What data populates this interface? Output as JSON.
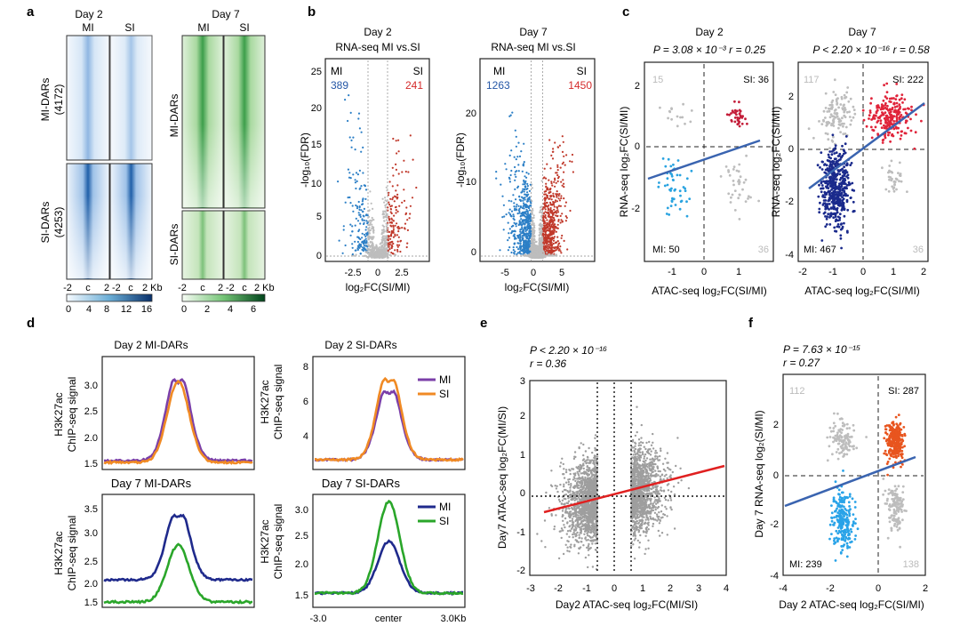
{
  "panels": {
    "a": {
      "label": "a",
      "day2_title": "Day 2",
      "day7_title": "Day 7",
      "col_mi": "MI",
      "col_si": "SI",
      "mi_dars_count": "MI-DARs",
      "mi_dars_n": "(4172)",
      "si_dars_count": "SI-DARs",
      "si_dars_n": "(4253)",
      "mi_dars7": "MI-DARs",
      "si_dars7": "SI-DARs",
      "xticks": [
        "-2",
        "c",
        "2",
        "-2",
        "c",
        "2 Kb"
      ],
      "cbar_blue": [
        "0",
        "4",
        "8",
        "12",
        "16"
      ],
      "cbar_green": [
        "0",
        "2",
        "4",
        "6"
      ],
      "xticks7": [
        "-2",
        "c",
        "2",
        "-2",
        "c",
        "2 Kb"
      ],
      "colors": {
        "blue_dark": "#1f5fa8",
        "blue_light": "#eaf2fb",
        "green_dark": "#1e7a2e",
        "green_light": "#e8f5e4"
      }
    },
    "b": {
      "label": "b",
      "day2": "Day 2",
      "day7": "Day 7",
      "title2": "RNA-seq MI vs.SI",
      "title7": "RNA-seq  MI vs.SI",
      "ylabel": "-log₁₀(FDR)",
      "xlabel": "log₂FC(SI/MI)",
      "mi": "MI",
      "si": "SI",
      "d2_mi_n": "389",
      "d2_si_n": "241",
      "d7_mi_n": "1263",
      "d7_si_n": "1450",
      "d2_xticks": [
        "-2.5",
        "0",
        "2.5"
      ],
      "d2_yticks": [
        "0",
        "5",
        "10",
        "15",
        "20",
        "25"
      ],
      "d7_xticks": [
        "-5",
        "0",
        "5"
      ],
      "d7_yticks": [
        "0",
        "10",
        "20"
      ],
      "colors": {
        "mi": "#2c7fc6",
        "si": "#c0392b",
        "ns": "#bdbdbd"
      }
    },
    "c": {
      "label": "c",
      "day2": "Day 2",
      "day7": "Day 7",
      "stat2": "P = 3.08 × 10⁻³  r = 0.25",
      "stat7": "P < 2.20 × 10⁻¹⁶ r = 0.58",
      "ylabel": "RNA-seq log₂FC(SI/MI)",
      "xlabel": "ATAC-seq log₂FC(SI/MI)",
      "d2_q": {
        "tl": "15",
        "tr": "SI: 36",
        "bl": "MI: 50",
        "br": "36"
      },
      "d7_q": {
        "tl": "117",
        "tr": "SI: 222",
        "bl": "MI: 467",
        "br": "36"
      },
      "d2_xticks": [
        "-1",
        "0",
        "1"
      ],
      "d2_yticks": [
        "-2",
        "0",
        "2"
      ],
      "d7_xticks": [
        "-2",
        "-1",
        "0",
        "1",
        "2"
      ],
      "d7_yticks": [
        "-4",
        "-2",
        "0",
        "2"
      ],
      "colors": {
        "si2": "#c41e3a",
        "mi2": "#29a3e0",
        "si7": "#e0243a",
        "mi7": "#1a2a8c",
        "ns": "#bdbdbd",
        "fit": "#3a64b0"
      }
    },
    "d": {
      "label": "d",
      "t1": "Day 2 MI-DARs",
      "t2": "Day 2 SI-DARs",
      "t3": "Day 7 MI-DARs",
      "t4": "Day 7 SI-DARs",
      "ylabel_a": "H3K27ac",
      "ylabel_b": "ChIP-seq signal",
      "legend_mi": "MI",
      "legend_si": "SI",
      "y1": [
        "1.5",
        "2.0",
        "2.5",
        "3.0"
      ],
      "y2": [
        "4",
        "6",
        "8"
      ],
      "y3": [
        "1.5",
        "2.0",
        "2.5",
        "3.0",
        "3.5"
      ],
      "y4": [
        "1.5",
        "2.0",
        "2.5",
        "3.0"
      ],
      "xticks": [
        "-3.0",
        "center",
        "3.0Kb"
      ],
      "colors": {
        "mi2": "#7b3fa8",
        "si2": "#f08a24",
        "mi7": "#1f2a8c",
        "si7": "#2aa62a"
      }
    },
    "e": {
      "label": "e",
      "stat1": "P < 2.20 × 10⁻¹⁶",
      "stat2": "r = 0.36",
      "ylabel": "Day7 ATAC-seq log₂FC(MI/SI)",
      "xlabel": "Day2 ATAC-seq log₂FC(MI/SI)",
      "xticks": [
        "-3",
        "-2",
        "-1",
        "0",
        "1",
        "2",
        "3",
        "4"
      ],
      "yticks": [
        "-2",
        "-1",
        "0",
        "1",
        "2",
        "3"
      ],
      "colors": {
        "pts": "#9e9e9e",
        "fit": "#e02020"
      }
    },
    "f": {
      "label": "f",
      "stat1": "P  = 7.63 × 10⁻¹⁵",
      "stat2": "r = 0.27",
      "ylabel": "Day 7 RNA-seq log₂(SI/MI)",
      "xlabel": "Day 2 ATAC-seq log₂FC(SI/MI)",
      "q": {
        "tl": "112",
        "tr": "SI: 287",
        "bl": "MI: 239",
        "br": "138"
      },
      "xticks": [
        "-4",
        "-2",
        "0",
        "2"
      ],
      "yticks": [
        "-4",
        "-2",
        "0",
        "2"
      ],
      "colors": {
        "si": "#e8551f",
        "mi": "#29a3e8",
        "ns": "#bdbdbd",
        "fit": "#3a64b0"
      }
    }
  },
  "chart_data": [
    {
      "type": "heatmap",
      "title": "Day 2",
      "columns": [
        "MI",
        "SI"
      ],
      "rows": [
        "MI-DARs (4172)",
        "SI-DARs (4253)"
      ],
      "x": [
        "-2",
        "c",
        "2 Kb"
      ],
      "colorbar": [
        0,
        16
      ]
    },
    {
      "type": "heatmap",
      "title": "Day 7",
      "columns": [
        "MI",
        "SI"
      ],
      "rows": [
        "MI-DARs",
        "SI-DARs"
      ],
      "x": [
        "-2",
        "c",
        "2 Kb"
      ],
      "colorbar": [
        0,
        6
      ]
    },
    {
      "type": "scatter",
      "title": "Day 2 RNA-seq MI vs.SI",
      "xlabel": "log₂FC(SI/MI)",
      "ylabel": "-log₁₀(FDR)",
      "counts": {
        "MI": 389,
        "SI": 241
      },
      "xlim": [
        -4.5,
        4.5
      ],
      "ylim": [
        0,
        26
      ]
    },
    {
      "type": "scatter",
      "title": "Day 7 RNA-seq MI vs.SI",
      "xlabel": "log₂FC(SI/MI)",
      "ylabel": "-log₁₀(FDR)",
      "counts": {
        "MI": 1263,
        "SI": 1450
      },
      "xlim": [
        -8,
        9
      ],
      "ylim": [
        0,
        27
      ]
    },
    {
      "type": "scatter",
      "title": "Day 2",
      "xlabel": "ATAC-seq log₂FC(SI/MI)",
      "ylabel": "RNA-seq log₂FC(SI/MI)",
      "counts": {
        "tl": 15,
        "SI": 36,
        "MI": 50,
        "br": 36
      },
      "P": "3.08 × 10⁻³",
      "r": 0.25,
      "xlim": [
        -1.7,
        1.7
      ],
      "ylim": [
        -3.5,
        3
      ]
    },
    {
      "type": "scatter",
      "title": "Day 7",
      "xlabel": "ATAC-seq log₂FC(SI/MI)",
      "ylabel": "RNA-seq log₂FC(SI/MI)",
      "counts": {
        "tl": 117,
        "SI": 222,
        "MI": 467,
        "br": 36
      },
      "P": "< 2.20 × 10⁻¹⁶",
      "r": 0.58,
      "xlim": [
        -2.1,
        2.1
      ],
      "ylim": [
        -4.5,
        3.2
      ]
    },
    {
      "type": "line",
      "title": "Day 2 MI-DARs",
      "ylabel": "H3K27ac ChIP-seq signal",
      "series": [
        {
          "name": "MI",
          "peak": 3.35,
          "base": 1.55
        },
        {
          "name": "SI",
          "peak": 3.05,
          "base": 1.52
        }
      ]
    },
    {
      "type": "line",
      "title": "Day 2 SI-DARs",
      "ylabel": "H3K27ac ChIP-seq signal",
      "series": [
        {
          "name": "MI",
          "peak": 7.3,
          "base": 2.4
        },
        {
          "name": "SI",
          "peak": 8.4,
          "base": 2.6
        }
      ]
    },
    {
      "type": "line",
      "title": "Day 7 MI-DARs",
      "ylabel": "H3K27ac ChIP-seq signal",
      "series": [
        {
          "name": "MI",
          "peak": 3.7,
          "base": 1.95
        },
        {
          "name": "SI",
          "peak": 2.7,
          "base": 1.6
        }
      ]
    },
    {
      "type": "line",
      "title": "Day 7 SI-DARs",
      "ylabel": "H3K27ac ChIP-seq signal",
      "x": [
        "-3.0",
        "center",
        "3.0Kb"
      ],
      "series": [
        {
          "name": "MI",
          "peak": 2.45,
          "base": 1.5
        },
        {
          "name": "SI",
          "peak": 3.2,
          "base": 1.5
        }
      ]
    },
    {
      "type": "scatter",
      "xlabel": "Day2 ATAC-seq log₂FC(MI/SI)",
      "ylabel": "Day7 ATAC-seq log₂FC(MI/SI)",
      "P": "< 2.20 × 10⁻¹⁶",
      "r": 0.36,
      "xlim": [
        -3,
        4
      ],
      "ylim": [
        -2,
        3
      ]
    },
    {
      "type": "scatter",
      "xlabel": "Day 2 ATAC-seq log₂FC(SI/MI)",
      "ylabel": "Day 7 RNA-seq log₂(SI/MI)",
      "counts": {
        "tl": 112,
        "SI": 287,
        "MI": 239,
        "br": 138
      },
      "P": "7.63 × 10⁻¹⁵",
      "r": 0.27,
      "xlim": [
        -4,
        2
      ],
      "ylim": [
        -4,
        3
      ]
    }
  ]
}
